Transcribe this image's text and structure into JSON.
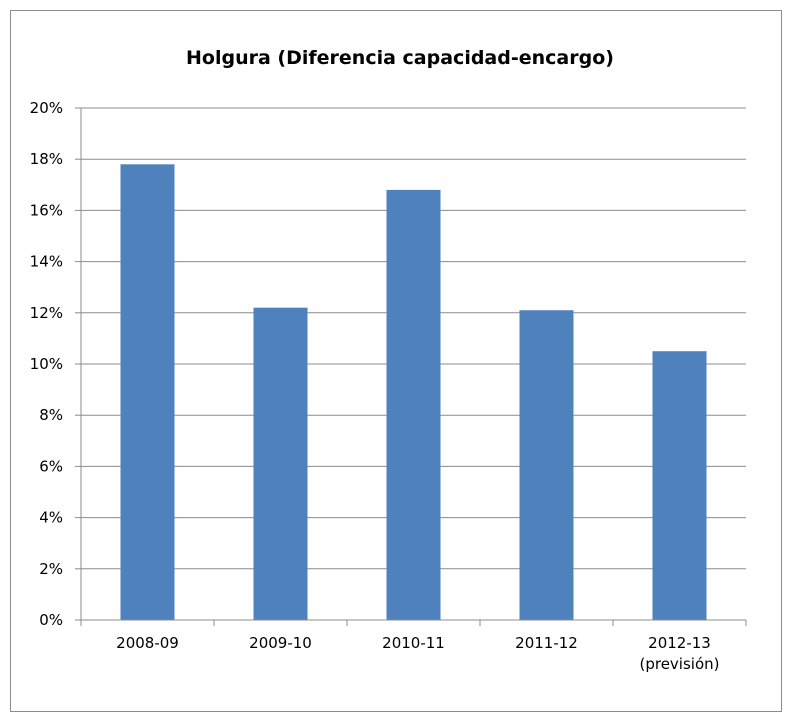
{
  "chart_data": {
    "type": "bar",
    "title": "Holgura (Diferencia capacidad-encargo)",
    "xlabel": "",
    "ylabel": "",
    "categories": [
      [
        "2008-09"
      ],
      [
        "2009-10"
      ],
      [
        "2010-11"
      ],
      [
        "2011-12"
      ],
      [
        "2012-13",
        "(previsión)"
      ]
    ],
    "values": [
      17.8,
      12.2,
      16.8,
      12.1,
      10.5
    ],
    "value_unit": "%",
    "ylim": [
      0,
      20
    ],
    "yticks": [
      "0%",
      "2%",
      "4%",
      "6%",
      "8%",
      "10%",
      "12%",
      "14%",
      "16%",
      "18%",
      "20%"
    ],
    "grid": true,
    "legend": "none",
    "bar_color": "#4f81bd"
  }
}
